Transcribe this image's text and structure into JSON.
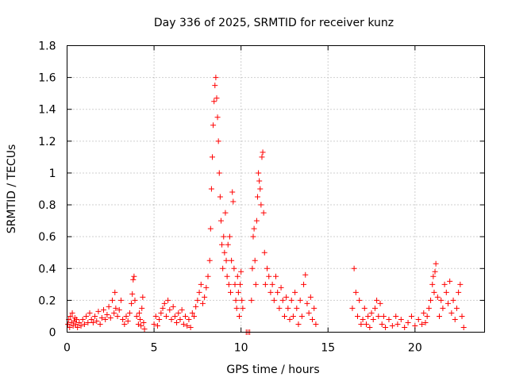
{
  "chart_data": {
    "type": "scatter",
    "title": "Day 336 of 2025, SRMTID for receiver kunz",
    "xlabel": "GPS time / hours",
    "ylabel": "SRMTID / TECUs",
    "xlim": [
      0,
      24
    ],
    "ylim": [
      0,
      1.8
    ],
    "xticks": [
      0,
      5,
      10,
      15,
      20
    ],
    "xtick_labels": [
      "0",
      "5",
      "10",
      "15",
      "20"
    ],
    "yticks": [
      0,
      0.2,
      0.4,
      0.6,
      0.8,
      1,
      1.2,
      1.4,
      1.6,
      1.8
    ],
    "ytick_labels": [
      "0",
      "0.2",
      "0.4",
      "0.6",
      "0.8",
      "1",
      "1.2",
      "1.4",
      "1.6",
      "1.8"
    ],
    "grid": true,
    "marker": "+",
    "color": "#ff0000",
    "series": [
      {
        "name": "SRMTID",
        "points": [
          [
            0.05,
            0.05
          ],
          [
            0.1,
            0.08
          ],
          [
            0.15,
            0.03
          ],
          [
            0.2,
            0.1
          ],
          [
            0.25,
            0.06
          ],
          [
            0.3,
            0.12
          ],
          [
            0.35,
            0.04
          ],
          [
            0.4,
            0.07
          ],
          [
            0.45,
            0.09
          ],
          [
            0.5,
            0.05
          ],
          [
            0.55,
            0.08
          ],
          [
            0.6,
            0.03
          ],
          [
            0.7,
            0.06
          ],
          [
            0.8,
            0.04
          ],
          [
            0.9,
            0.08
          ],
          [
            1.0,
            0.05
          ],
          [
            1.1,
            0.1
          ],
          [
            1.2,
            0.06
          ],
          [
            1.3,
            0.12
          ],
          [
            1.4,
            0.08
          ],
          [
            1.5,
            0.06
          ],
          [
            1.6,
            0.1
          ],
          [
            1.7,
            0.07
          ],
          [
            1.8,
            0.13
          ],
          [
            1.9,
            0.05
          ],
          [
            2.0,
            0.09
          ],
          [
            2.1,
            0.14
          ],
          [
            2.2,
            0.08
          ],
          [
            2.3,
            0.11
          ],
          [
            2.4,
            0.16
          ],
          [
            2.5,
            0.09
          ],
          [
            2.6,
            0.2
          ],
          [
            2.7,
            0.12
          ],
          [
            2.75,
            0.25
          ],
          [
            2.8,
            0.15
          ],
          [
            2.9,
            0.1
          ],
          [
            3.0,
            0.14
          ],
          [
            3.1,
            0.2
          ],
          [
            3.2,
            0.08
          ],
          [
            3.3,
            0.05
          ],
          [
            3.4,
            0.1
          ],
          [
            3.5,
            0.07
          ],
          [
            3.6,
            0.12
          ],
          [
            3.7,
            0.18
          ],
          [
            3.75,
            0.24
          ],
          [
            3.8,
            0.33
          ],
          [
            3.85,
            0.35
          ],
          [
            3.9,
            0.2
          ],
          [
            4.0,
            0.1
          ],
          [
            4.1,
            0.05
          ],
          [
            4.15,
            0.12
          ],
          [
            4.2,
            0.08
          ],
          [
            4.25,
            0.04
          ],
          [
            4.3,
            0.15
          ],
          [
            4.35,
            0.22
          ],
          [
            4.4,
            0.06
          ],
          [
            4.45,
            0.02
          ],
          [
            5.0,
            0.05
          ],
          [
            5.1,
            0.1
          ],
          [
            5.2,
            0.04
          ],
          [
            5.3,
            0.08
          ],
          [
            5.4,
            0.12
          ],
          [
            5.5,
            0.15
          ],
          [
            5.6,
            0.18
          ],
          [
            5.7,
            0.1
          ],
          [
            5.8,
            0.2
          ],
          [
            5.9,
            0.14
          ],
          [
            6.0,
            0.08
          ],
          [
            6.1,
            0.16
          ],
          [
            6.2,
            0.1
          ],
          [
            6.3,
            0.06
          ],
          [
            6.4,
            0.12
          ],
          [
            6.5,
            0.08
          ],
          [
            6.6,
            0.14
          ],
          [
            6.7,
            0.05
          ],
          [
            6.8,
            0.1
          ],
          [
            6.9,
            0.04
          ],
          [
            7.0,
            0.08
          ],
          [
            7.1,
            0.03
          ],
          [
            7.2,
            0.12
          ],
          [
            7.3,
            0.1
          ],
          [
            7.4,
            0.16
          ],
          [
            7.5,
            0.2
          ],
          [
            7.6,
            0.25
          ],
          [
            7.7,
            0.3
          ],
          [
            7.8,
            0.18
          ],
          [
            7.9,
            0.22
          ],
          [
            8.0,
            0.28
          ],
          [
            8.1,
            0.35
          ],
          [
            8.2,
            0.45
          ],
          [
            8.25,
            0.65
          ],
          [
            8.3,
            0.9
          ],
          [
            8.35,
            1.1
          ],
          [
            8.4,
            1.3
          ],
          [
            8.45,
            1.45
          ],
          [
            8.5,
            1.55
          ],
          [
            8.55,
            1.6
          ],
          [
            8.6,
            1.47
          ],
          [
            8.65,
            1.35
          ],
          [
            8.7,
            1.2
          ],
          [
            8.75,
            1.0
          ],
          [
            8.8,
            0.85
          ],
          [
            8.85,
            0.7
          ],
          [
            8.9,
            0.55
          ],
          [
            8.95,
            0.4
          ],
          [
            9.0,
            0.6
          ],
          [
            9.05,
            0.5
          ],
          [
            9.1,
            0.75
          ],
          [
            9.15,
            0.45
          ],
          [
            9.2,
            0.35
          ],
          [
            9.25,
            0.55
          ],
          [
            9.3,
            0.3
          ],
          [
            9.35,
            0.6
          ],
          [
            9.4,
            0.25
          ],
          [
            9.45,
            0.45
          ],
          [
            9.5,
            0.88
          ],
          [
            9.55,
            0.82
          ],
          [
            9.6,
            0.4
          ],
          [
            9.65,
            0.3
          ],
          [
            9.7,
            0.2
          ],
          [
            9.75,
            0.15
          ],
          [
            9.8,
            0.35
          ],
          [
            9.85,
            0.25
          ],
          [
            9.9,
            0.1
          ],
          [
            9.95,
            0.3
          ],
          [
            10.0,
            0.38
          ],
          [
            10.05,
            0.2
          ],
          [
            10.1,
            0.15
          ],
          [
            10.3,
            0.0
          ],
          [
            10.4,
            0.0
          ],
          [
            10.5,
            0.0
          ],
          [
            10.6,
            0.2
          ],
          [
            10.65,
            0.4
          ],
          [
            10.7,
            0.6
          ],
          [
            10.75,
            0.65
          ],
          [
            10.8,
            0.45
          ],
          [
            10.85,
            0.3
          ],
          [
            10.9,
            0.7
          ],
          [
            10.95,
            0.85
          ],
          [
            11.0,
            1.0
          ],
          [
            11.05,
            0.95
          ],
          [
            11.1,
            0.9
          ],
          [
            11.15,
            0.8
          ],
          [
            11.2,
            1.1
          ],
          [
            11.25,
            1.13
          ],
          [
            11.3,
            0.75
          ],
          [
            11.35,
            0.5
          ],
          [
            11.4,
            0.3
          ],
          [
            11.5,
            0.4
          ],
          [
            11.6,
            0.35
          ],
          [
            11.7,
            0.25
          ],
          [
            11.8,
            0.3
          ],
          [
            11.9,
            0.2
          ],
          [
            12.0,
            0.35
          ],
          [
            12.1,
            0.25
          ],
          [
            12.2,
            0.15
          ],
          [
            12.3,
            0.28
          ],
          [
            12.4,
            0.2
          ],
          [
            12.5,
            0.1
          ],
          [
            12.6,
            0.22
          ],
          [
            12.7,
            0.15
          ],
          [
            12.8,
            0.08
          ],
          [
            12.9,
            0.2
          ],
          [
            13.0,
            0.1
          ],
          [
            13.1,
            0.25
          ],
          [
            13.2,
            0.15
          ],
          [
            13.3,
            0.05
          ],
          [
            13.4,
            0.2
          ],
          [
            13.5,
            0.1
          ],
          [
            13.6,
            0.3
          ],
          [
            13.7,
            0.36
          ],
          [
            13.8,
            0.18
          ],
          [
            13.9,
            0.12
          ],
          [
            14.0,
            0.22
          ],
          [
            14.1,
            0.08
          ],
          [
            14.2,
            0.15
          ],
          [
            14.3,
            0.05
          ],
          [
            16.4,
            0.15
          ],
          [
            16.5,
            0.4
          ],
          [
            16.6,
            0.25
          ],
          [
            16.7,
            0.1
          ],
          [
            16.8,
            0.2
          ],
          [
            16.9,
            0.05
          ],
          [
            17.0,
            0.08
          ],
          [
            17.1,
            0.15
          ],
          [
            17.2,
            0.05
          ],
          [
            17.3,
            0.1
          ],
          [
            17.4,
            0.03
          ],
          [
            17.5,
            0.12
          ],
          [
            17.6,
            0.08
          ],
          [
            17.7,
            0.15
          ],
          [
            17.8,
            0.2
          ],
          [
            17.9,
            0.1
          ],
          [
            18.0,
            0.18
          ],
          [
            18.1,
            0.05
          ],
          [
            18.2,
            0.1
          ],
          [
            18.3,
            0.03
          ],
          [
            18.5,
            0.08
          ],
          [
            18.7,
            0.04
          ],
          [
            18.9,
            0.1
          ],
          [
            19.0,
            0.05
          ],
          [
            19.2,
            0.08
          ],
          [
            19.4,
            0.03
          ],
          [
            19.6,
            0.06
          ],
          [
            19.8,
            0.1
          ],
          [
            20.0,
            0.04
          ],
          [
            20.2,
            0.08
          ],
          [
            20.4,
            0.05
          ],
          [
            20.5,
            0.12
          ],
          [
            20.6,
            0.06
          ],
          [
            20.7,
            0.1
          ],
          [
            20.8,
            0.15
          ],
          [
            20.9,
            0.2
          ],
          [
            21.0,
            0.3
          ],
          [
            21.05,
            0.35
          ],
          [
            21.1,
            0.25
          ],
          [
            21.15,
            0.38
          ],
          [
            21.2,
            0.43
          ],
          [
            21.3,
            0.22
          ],
          [
            21.4,
            0.1
          ],
          [
            21.5,
            0.2
          ],
          [
            21.6,
            0.15
          ],
          [
            21.7,
            0.3
          ],
          [
            21.8,
            0.25
          ],
          [
            21.9,
            0.18
          ],
          [
            22.0,
            0.32
          ],
          [
            22.1,
            0.12
          ],
          [
            22.2,
            0.2
          ],
          [
            22.3,
            0.08
          ],
          [
            22.4,
            0.15
          ],
          [
            22.5,
            0.25
          ],
          [
            22.6,
            0.3
          ],
          [
            22.7,
            0.1
          ],
          [
            22.8,
            0.03
          ]
        ]
      }
    ]
  }
}
